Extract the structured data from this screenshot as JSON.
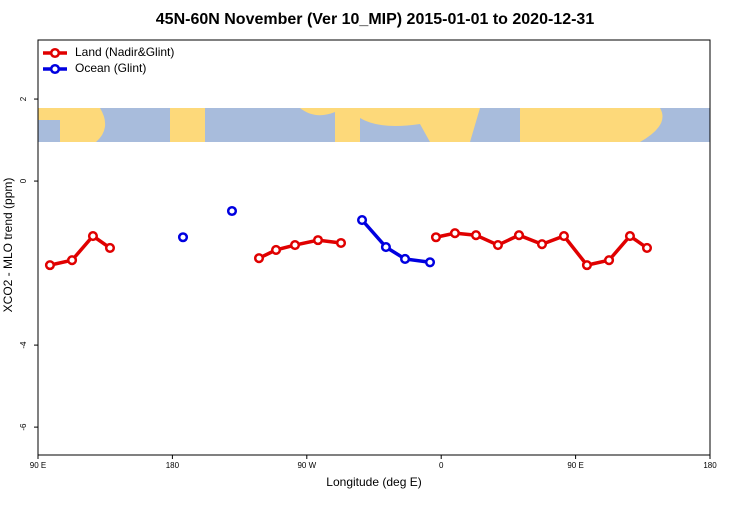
{
  "chart_data": {
    "type": "line",
    "title": "45N-60N November (Ver 10_MIP)   2015-01-01 to 2020-12-31",
    "x_label": "Longitude (deg E)",
    "y_label": "XCO2 - MLO trend (ppm)",
    "xlim": [
      90,
      540
    ],
    "xticks": [
      {
        "value": 90,
        "label": "90 E"
      },
      180,
      {
        "value": 270,
        "label": "90 W"
      },
      {
        "value": 360,
        "label": "0"
      },
      {
        "value": 450,
        "label": "90 E"
      },
      {
        "value": 540,
        "label": "180"
      }
    ],
    "ylim": [
      -6.68,
      3.44
    ],
    "yticks": [
      2,
      0,
      -4,
      -6
    ],
    "legend": "top-left",
    "series": [
      {
        "name": "Land (Nadir&Glint)",
        "color": "#e00000",
        "x": [
          98.0,
          112.8,
          126.8,
          138.2,
          null,
          238.0,
          249.4,
          262.1,
          277.5,
          292.9,
          null,
          356.5,
          369.2,
          383.3,
          398.0,
          412.1,
          427.5,
          442.2,
          457.6,
          472.4,
          486.4,
          497.8
        ],
        "values": [
          -2.05,
          -1.93,
          -1.34,
          -1.63,
          null,
          -1.88,
          -1.68,
          -1.56,
          -1.44,
          -1.51,
          null,
          -1.37,
          -1.27,
          -1.32,
          -1.56,
          -1.32,
          -1.54,
          -1.34,
          -2.05,
          -1.93,
          -1.34,
          -1.63
        ]
      },
      {
        "name": "Ocean (Glint)",
        "color": "#0000e0",
        "x": [
          187.1,
          null,
          219.9,
          null,
          307.0,
          323.0,
          335.8,
          352.5
        ],
        "values": [
          -1.37,
          null,
          -0.73,
          null,
          -0.95,
          -1.61,
          -1.9,
          -1.98
        ]
      }
    ]
  }
}
